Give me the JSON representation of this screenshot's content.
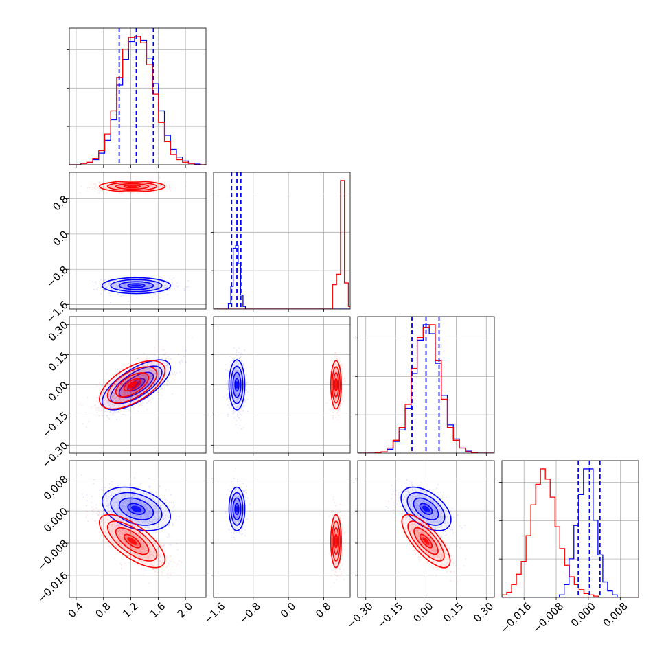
{
  "chart_data": {
    "type": "corner",
    "title": "",
    "grid": true,
    "colors": {
      "series_a": "#0000ff",
      "series_b": "#ff0000"
    },
    "params": [
      {
        "range": [
          0.3,
          2.3
        ],
        "ticks": [
          "0.4",
          "0.8",
          "1.2",
          "1.6",
          "2.0"
        ],
        "tick_values": [
          0.4,
          0.8,
          1.2,
          1.6,
          2.0
        ],
        "xlabel": ""
      },
      {
        "range": [
          -1.7,
          1.4
        ],
        "ticks": [
          "−1.6",
          "−0.8",
          "0.0",
          "0.8"
        ],
        "tick_values": [
          -1.6,
          -0.8,
          0.0,
          0.8
        ],
        "xlabel": ""
      },
      {
        "range": [
          -0.34,
          0.34
        ],
        "ticks": [
          "−0.30",
          "−0.15",
          "0.00",
          "0.15",
          "0.30"
        ],
        "tick_values": [
          -0.3,
          -0.15,
          0.0,
          0.15,
          0.3
        ],
        "xlabel": ""
      },
      {
        "range": [
          -0.0215,
          0.0125
        ],
        "ticks": [
          "−0.016",
          "−0.008",
          "0.000",
          "0.008"
        ],
        "tick_values": [
          -0.016,
          -0.008,
          0.0,
          0.008
        ],
        "xlabel": ""
      }
    ],
    "series": [
      {
        "color": "#0000ff",
        "means": [
          1.28,
          -1.17,
          0.0,
          0.0005
        ],
        "stds": [
          0.25,
          0.09,
          0.062,
          0.0027
        ],
        "correlations": {
          "1-0": 0.0,
          "2-0": 0.68,
          "2-1": 0.0,
          "3-0": -0.35,
          "3-1": 0.0,
          "3-2": -0.5
        },
        "quantiles": [
          [
            1.03,
            1.28,
            1.53
          ],
          [
            -1.29,
            -1.17,
            -1.08
          ],
          [
            -0.07,
            0.0,
            0.065
          ],
          [
            -0.0025,
            0.0003,
            0.0029
          ]
        ],
        "histograms": [
          {
            "edges_start": 0.38,
            "bin_width": 0.0875,
            "counts": [
              0,
              1,
              1.5,
              4,
              9,
              19,
              35,
              62,
              82,
              96,
              100,
              97,
              83,
              63,
              42,
              23,
              12,
              6,
              3,
              1,
              0.5
            ]
          },
          {
            "edges_start": -1.42,
            "bin_width": 0.0555,
            "counts": [
              0,
              6,
              26,
              70,
              73,
              52,
              16,
              3
            ]
          },
          {
            "edges_start": -0.254,
            "bin_width": 0.03,
            "counts": [
              0.5,
              1,
              3,
              9,
              18,
              35,
              62,
              88,
              100,
              93,
              70,
              45,
              22,
              11,
              4,
              1.5,
              0.5
            ]
          },
          {
            "edges_start": -0.0072,
            "bin_width": 0.0012,
            "counts": [
              2,
              10,
              30,
              56,
              80,
              100,
              100,
              60,
              33,
              12,
              5,
              2
            ]
          }
        ]
      },
      {
        "color": "#ff0000",
        "means": [
          1.22,
          1.08,
          0.0,
          -0.0075
        ],
        "stds": [
          0.24,
          0.06,
          0.06,
          0.0033
        ],
        "correlations": {
          "1-0": 0.0,
          "2-0": 0.6,
          "2-1": 0.0,
          "3-0": -0.7,
          "3-1": 0.0,
          "3-2": -0.75
        },
        "quantiles": [
          [
            0.98,
            1.22,
            1.47
          ],
          [
            1.0,
            1.08,
            1.15
          ],
          [
            -0.06,
            0.0,
            0.06
          ],
          [
            -0.011,
            -0.0075,
            -0.004
          ]
        ],
        "histograms": [
          {
            "edges_start": 0.38,
            "bin_width": 0.0875,
            "counts": [
              0,
              1,
              2,
              5,
              11,
              24,
              42,
              68,
              90,
              99,
              100,
              95,
              78,
              55,
              33,
              18,
              8,
              4,
              2,
              1,
              0
            ]
          },
          {
            "edges_start": 0.55,
            "bin_width": 0.09,
            "counts": [
              0,
              0,
              0,
              0,
              0,
              28,
              40,
              148,
              30,
              3
            ]
          },
          {
            "edges_start": -0.254,
            "bin_width": 0.03,
            "counts": [
              0.5,
              1,
              4,
              10,
              20,
              38,
              66,
              90,
              98,
              100,
              72,
              42,
              20,
              10,
              4,
              1,
              0.5
            ]
          },
          {
            "edges_start": -0.0215,
            "bin_width": 0.0012,
            "counts": [
              2,
              4,
              10,
              18,
              28,
              48,
              72,
              88,
              100,
              92,
              78,
              55,
              38,
              25,
              16,
              10,
              6,
              3,
              2,
              1
            ]
          }
        ]
      }
    ]
  }
}
